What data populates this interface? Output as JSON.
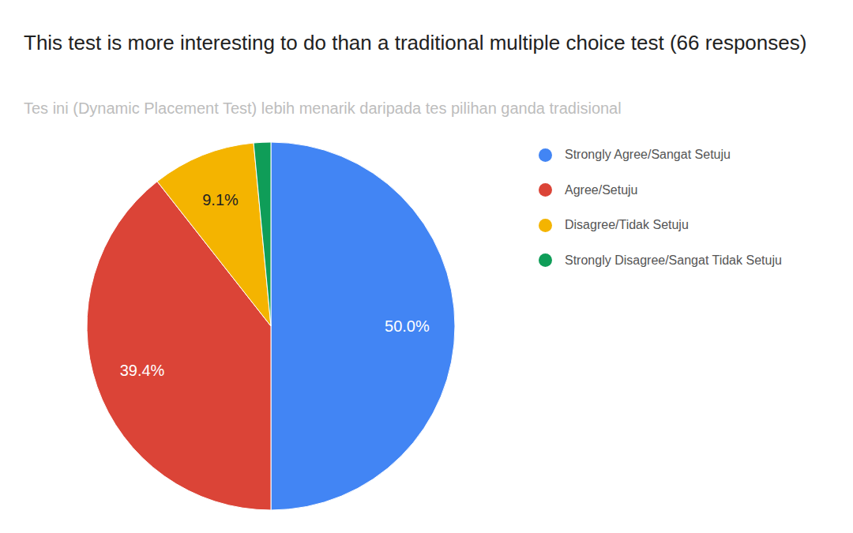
{
  "chart_data": {
    "type": "pie",
    "title": "This test is more interesting to do than a traditional multiple choice test (66 responses)",
    "subtitle": "Tes ini (Dynamic Placement Test) lebih menarik daripada tes pilihan ganda tradisional",
    "categories": [
      "Strongly Agree/Sangat Setuju",
      "Agree/Setuju",
      "Disagree/Tidak Setuju",
      "Strongly Disagree/Sangat Tidak Setuju"
    ],
    "values": [
      50.0,
      39.4,
      9.1,
      1.5
    ],
    "value_labels": [
      "50.0%",
      "39.4%",
      "9.1%",
      null
    ],
    "colors": [
      "#4285f4",
      "#db4437",
      "#f4b400",
      "#0f9d58"
    ],
    "legend": "right",
    "data_labels": true
  }
}
